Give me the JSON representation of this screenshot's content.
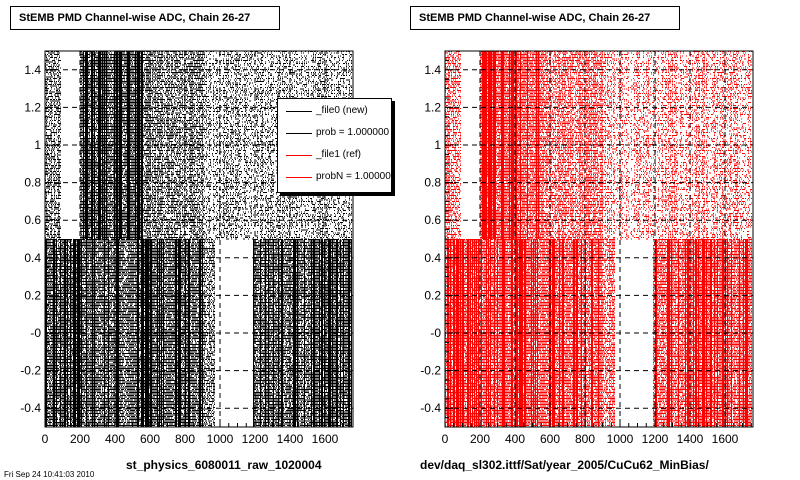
{
  "footer_note": "Fri Sep 24 10:41:03 2010",
  "chart_data": [
    {
      "type": "scatter",
      "title": "StEMB PMD Channel-wise ADC, Chain 26-27",
      "xlabel": "st_physics_6080011_raw_1020004",
      "ylabel": "",
      "xlim": [
        0,
        1760
      ],
      "ylim": [
        -0.5,
        1.5
      ],
      "xticks": [
        0,
        200,
        400,
        600,
        800,
        1000,
        1200,
        1400,
        1600
      ],
      "yticks": [
        -0.4,
        -0.2,
        0,
        0.2,
        0.4,
        0.6,
        0.8,
        1,
        1.2,
        1.4
      ],
      "ytick_labels": [
        "-0.4",
        "-0.2",
        "-0",
        "0.2",
        "0.4",
        "0.6",
        "0.8",
        "1",
        "1.2",
        "1.4"
      ],
      "grid": true,
      "legend_position": "top-right",
      "series": [
        {
          "name": "_file0 (new)",
          "color": "#000000"
        },
        {
          "name": "_file1 (ref)",
          "color": "#ff0000"
        }
      ],
      "legend": [
        {
          "label": "_file0 (new)",
          "color": "#000000"
        },
        {
          "label": "prob = 1.000000",
          "color": "#000000"
        },
        {
          "label": "_file1 (ref)",
          "color": "#ff0000"
        },
        {
          "label": "probN = 1.000000",
          "color": "#ff0000"
        }
      ],
      "density_bands": [
        {
          "x": [
            0,
            90
          ],
          "y": [
            -0.5,
            0.5
          ],
          "level": "dense"
        },
        {
          "x": [
            90,
            200
          ],
          "y": [
            -0.5,
            0.5
          ],
          "level": "dense"
        },
        {
          "x": [
            200,
            560
          ],
          "y": [
            -0.5,
            0.5
          ],
          "level": "dense"
        },
        {
          "x": [
            560,
            900
          ],
          "y": [
            -0.5,
            0.5
          ],
          "level": "dense"
        },
        {
          "x": [
            900,
            970
          ],
          "y": [
            -0.5,
            0.5
          ],
          "level": "medium"
        },
        {
          "x": [
            970,
            1190
          ],
          "y": [
            -0.5,
            0.45
          ],
          "level": "empty"
        },
        {
          "x": [
            1190,
            1750
          ],
          "y": [
            -0.5,
            0.5
          ],
          "level": "dense"
        },
        {
          "x": [
            0,
            90
          ],
          "y": [
            0.5,
            1.5
          ],
          "level": "medium"
        },
        {
          "x": [
            90,
            200
          ],
          "y": [
            0.5,
            1.5
          ],
          "level": "empty"
        },
        {
          "x": [
            200,
            560
          ],
          "y": [
            0.5,
            1.5
          ],
          "level": "dense"
        },
        {
          "x": [
            560,
            900
          ],
          "y": [
            0.5,
            1.5
          ],
          "level": "medium"
        },
        {
          "x": [
            900,
            1750
          ],
          "y": [
            0.5,
            1.5
          ],
          "level": "sparse"
        }
      ],
      "point_color": "#000000"
    },
    {
      "type": "scatter",
      "title": "StEMB PMD Channel-wise ADC, Chain 26-27",
      "xlabel": "dev/daq_sl302.ittf/Sat/year_2005/CuCu62_MinBias/",
      "ylabel": "",
      "xlim": [
        0,
        1760
      ],
      "ylim": [
        -0.5,
        1.5
      ],
      "xticks": [
        0,
        200,
        400,
        600,
        800,
        1000,
        1200,
        1400,
        1600
      ],
      "yticks": [
        -0.4,
        -0.2,
        0,
        0.2,
        0.4,
        0.6,
        0.8,
        1,
        1.2,
        1.4
      ],
      "ytick_labels": [
        "-0.4",
        "-0.2",
        "-0",
        "0.2",
        "0.4",
        "0.6",
        "0.8",
        "1",
        "1.2",
        "1.4"
      ],
      "grid": true,
      "density_bands": [
        {
          "x": [
            0,
            90
          ],
          "y": [
            -0.5,
            0.5
          ],
          "level": "dense"
        },
        {
          "x": [
            90,
            200
          ],
          "y": [
            -0.5,
            0.5
          ],
          "level": "dense"
        },
        {
          "x": [
            200,
            560
          ],
          "y": [
            -0.5,
            0.5
          ],
          "level": "dense"
        },
        {
          "x": [
            560,
            900
          ],
          "y": [
            -0.5,
            0.5
          ],
          "level": "dense"
        },
        {
          "x": [
            900,
            970
          ],
          "y": [
            -0.5,
            0.5
          ],
          "level": "medium"
        },
        {
          "x": [
            970,
            1190
          ],
          "y": [
            -0.5,
            0.45
          ],
          "level": "empty"
        },
        {
          "x": [
            1190,
            1750
          ],
          "y": [
            -0.5,
            0.5
          ],
          "level": "dense"
        },
        {
          "x": [
            0,
            90
          ],
          "y": [
            0.5,
            1.5
          ],
          "level": "medium"
        },
        {
          "x": [
            90,
            200
          ],
          "y": [
            0.5,
            1.5
          ],
          "level": "empty"
        },
        {
          "x": [
            200,
            560
          ],
          "y": [
            0.5,
            1.5
          ],
          "level": "dense"
        },
        {
          "x": [
            560,
            900
          ],
          "y": [
            0.5,
            1.5
          ],
          "level": "medium"
        },
        {
          "x": [
            900,
            1750
          ],
          "y": [
            0.5,
            1.5
          ],
          "level": "sparse"
        }
      ],
      "point_color": "#ff0000"
    }
  ]
}
